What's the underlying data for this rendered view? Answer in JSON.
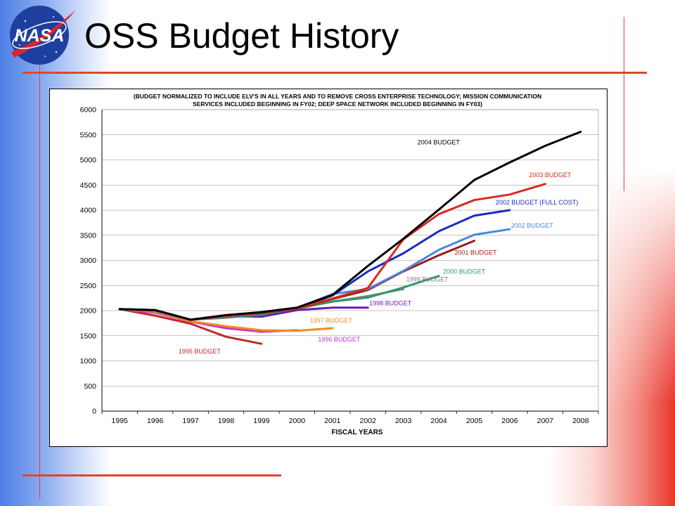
{
  "slide": {
    "title": "OSS Budget History",
    "logo_text": "NASA",
    "colors": {
      "left_gradient": "#4d7fe6",
      "right_gradient": "#e8352a",
      "rule": "#e0452c"
    }
  },
  "chart_data": {
    "type": "line",
    "title": "(BUDGET NORMALIZED TO INCLUDE ELV'S IN ALL YEARS AND TO REMOVE CROSS ENTERPRISE TECHNOLOGY; MISSION COMMUNICATION SERVICES INCLUDED BEGINNING IN FY02; DEEP SPACE NETWORK INCLUDED BEGINNING IN FY03)",
    "xlabel": "FISCAL YEARS",
    "ylabel": "",
    "categories": [
      "1995",
      "1996",
      "1997",
      "1998",
      "1999",
      "2000",
      "2001",
      "2002",
      "2003",
      "2004",
      "2005",
      "2006",
      "2007",
      "2008"
    ],
    "ylim": [
      0,
      6000
    ],
    "yticks": [
      0,
      500,
      1000,
      1500,
      2000,
      2500,
      3000,
      3500,
      4000,
      4500,
      5000,
      5500,
      6000
    ],
    "grid": true,
    "series": [
      {
        "name": "1995 BUDGET",
        "color": "#c0292a",
        "values": [
          2030,
          1900,
          1740,
          1480,
          1340,
          null,
          null,
          null,
          null,
          null,
          null,
          null,
          null,
          null
        ]
      },
      {
        "name": "1996 BUDGET",
        "color": "#cc33cc",
        "values": [
          2030,
          1960,
          1780,
          1650,
          1580,
          1610,
          null,
          null,
          null,
          null,
          null,
          null,
          null,
          null
        ]
      },
      {
        "name": "1997 BUDGET",
        "color": "#f08c1e",
        "values": [
          2030,
          1980,
          1790,
          1690,
          1610,
          1600,
          1650,
          null,
          null,
          null,
          null,
          null,
          null,
          null
        ]
      },
      {
        "name": "1998 BUDGET",
        "color": "#6a1bb0",
        "values": [
          2030,
          2010,
          1820,
          1890,
          1880,
          2010,
          2060,
          2060,
          null,
          null,
          null,
          null,
          null,
          null
        ]
      },
      {
        "name": "1999 BUDGET",
        "color": "#808080",
        "values": [
          2030,
          2000,
          1820,
          1860,
          1930,
          2040,
          2180,
          2290,
          2430,
          null,
          null,
          null,
          null,
          null
        ]
      },
      {
        "name": "2000 BUDGET",
        "color": "#2f9a6a",
        "values": [
          2030,
          2000,
          1820,
          1860,
          1920,
          2040,
          2180,
          2260,
          2460,
          2690,
          null,
          null,
          null,
          null
        ]
      },
      {
        "name": "2001 BUDGET",
        "color": "#9a1b1b",
        "values": [
          2030,
          2010,
          1820,
          1880,
          1950,
          2040,
          2230,
          2410,
          2780,
          3100,
          3390,
          null,
          null,
          null
        ]
      },
      {
        "name": "2002 BUDGET",
        "color": "#4a86e0",
        "values": [
          2030,
          2010,
          1820,
          1880,
          1960,
          2050,
          2330,
          2430,
          2790,
          3210,
          3510,
          3620,
          null,
          null
        ]
      },
      {
        "name": "2002 BUDGET (FULL COST)",
        "color": "#1a2cc0",
        "values": [
          2030,
          2010,
          1820,
          1900,
          1960,
          2050,
          2300,
          2780,
          3140,
          3580,
          3890,
          4000,
          null,
          null
        ]
      },
      {
        "name": "2003 BUDGET",
        "color": "#d62b1e",
        "values": [
          2030,
          2010,
          1820,
          1890,
          1960,
          2050,
          2240,
          2450,
          3420,
          3920,
          4200,
          4310,
          4520,
          null
        ]
      },
      {
        "name": "2004 BUDGET",
        "color": "#000000",
        "values": [
          2030,
          2010,
          1820,
          1910,
          1970,
          2060,
          2310,
          2890,
          3430,
          4010,
          4600,
          4950,
          5280,
          5560
        ]
      }
    ]
  }
}
